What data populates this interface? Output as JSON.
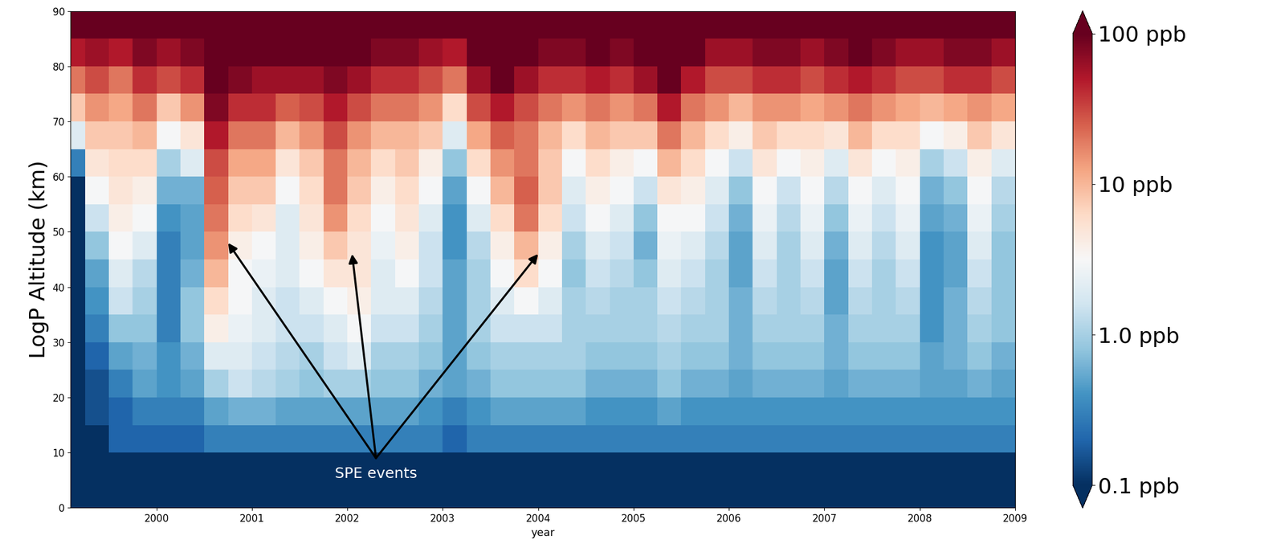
{
  "chart_data": {
    "type": "heatmap",
    "x_label": "year",
    "y_label": "LogP Altitude (km)",
    "xlim": [
      1999.1,
      2009.0
    ],
    "xticks": [
      2000,
      2001,
      2002,
      2003,
      2004,
      2005,
      2006,
      2007,
      2008,
      2009
    ],
    "ylim": [
      0,
      90
    ],
    "yticks": [
      0,
      10,
      20,
      30,
      40,
      50,
      60,
      70,
      80,
      90
    ],
    "x": [
      1999.125,
      1999.375,
      1999.625,
      1999.875,
      2000.125,
      2000.375,
      2000.625,
      2000.875,
      2001.125,
      2001.375,
      2001.625,
      2001.875,
      2002.125,
      2002.375,
      2002.625,
      2002.875,
      2003.125,
      2003.375,
      2003.625,
      2003.875,
      2004.125,
      2004.375,
      2004.625,
      2004.875,
      2005.125,
      2005.375,
      2005.625,
      2005.875,
      2006.125,
      2006.375,
      2006.625,
      2006.875,
      2007.125,
      2007.375,
      2007.625,
      2007.875,
      2008.125,
      2008.375,
      2008.625,
      2008.875
    ],
    "y": [
      2.5,
      7.5,
      12.5,
      17.5,
      22.5,
      27.5,
      32.5,
      37.5,
      42.5,
      47.5,
      52.5,
      57.5,
      62.5,
      67.5,
      72.5,
      77.5,
      82.5,
      87.5
    ],
    "cells": [
      [
        0.1,
        0.1,
        0.1,
        0.1,
        0.1,
        0.1,
        0.1,
        0.1,
        0.1,
        0.1,
        0.1,
        0.1,
        0.3,
        2,
        8,
        20,
        50,
        100
      ],
      [
        0.1,
        0.1,
        0.1,
        0.15,
        0.15,
        0.2,
        0.3,
        0.4,
        0.5,
        0.8,
        1.5,
        3,
        5,
        8,
        15,
        30,
        60,
        100
      ],
      [
        0.1,
        0.1,
        0.2,
        0.2,
        0.3,
        0.5,
        0.8,
        1.5,
        2,
        3,
        4,
        5,
        6,
        8,
        12,
        20,
        50,
        100
      ],
      [
        0.1,
        0.1,
        0.2,
        0.3,
        0.5,
        0.6,
        0.8,
        1,
        1.2,
        2,
        3,
        4,
        6,
        10,
        20,
        40,
        80,
        150
      ],
      [
        0.1,
        0.1,
        0.2,
        0.3,
        0.4,
        0.4,
        0.3,
        0.3,
        0.3,
        0.3,
        0.4,
        0.6,
        1,
        3,
        8,
        30,
        60,
        120
      ],
      [
        0.1,
        0.1,
        0.2,
        0.3,
        0.5,
        0.6,
        0.8,
        0.8,
        0.6,
        0.5,
        0.5,
        0.6,
        2,
        5,
        15,
        40,
        80,
        150
      ],
      [
        0.1,
        0.1,
        0.3,
        0.5,
        1,
        2,
        4,
        6,
        10,
        15,
        20,
        25,
        30,
        50,
        80,
        120,
        150,
        200
      ],
      [
        0.1,
        0.1,
        0.3,
        0.6,
        1.5,
        2,
        2.5,
        3,
        3,
        4,
        6,
        8,
        12,
        20,
        40,
        80,
        120,
        150
      ],
      [
        0.1,
        0.1,
        0.3,
        0.6,
        1.2,
        1.5,
        2,
        2,
        2.5,
        3,
        5,
        8,
        12,
        20,
        40,
        60,
        100,
        150
      ],
      [
        0.1,
        0.1,
        0.3,
        0.5,
        1,
        1.2,
        1.5,
        1.5,
        2,
        2,
        2,
        3,
        5,
        10,
        25,
        60,
        100,
        150
      ],
      [
        0.1,
        0.1,
        0.3,
        0.5,
        0.8,
        1,
        1.5,
        2,
        3,
        4,
        5,
        6,
        8,
        15,
        30,
        60,
        100,
        150
      ],
      [
        0.1,
        0.1,
        0.3,
        0.5,
        1,
        1.5,
        2,
        3,
        5,
        8,
        15,
        20,
        20,
        30,
        50,
        80,
        100,
        150
      ],
      [
        0.1,
        0.1,
        0.3,
        0.5,
        1,
        2,
        3,
        4,
        5,
        5,
        6,
        8,
        10,
        15,
        30,
        60,
        100,
        150
      ],
      [
        0.1,
        0.1,
        0.3,
        0.5,
        0.8,
        1,
        1.5,
        2,
        2,
        2.5,
        3,
        4,
        6,
        10,
        20,
        40,
        80,
        150
      ],
      [
        0.1,
        0.1,
        0.3,
        0.5,
        0.8,
        1,
        1.5,
        2,
        3,
        4,
        5,
        6,
        8,
        10,
        20,
        40,
        80,
        120
      ],
      [
        0.1,
        0.1,
        0.3,
        0.4,
        0.6,
        0.8,
        1,
        1.2,
        1.5,
        1.5,
        2,
        3,
        4,
        8,
        15,
        30,
        60,
        100
      ],
      [
        0.1,
        0.1,
        0.2,
        0.3,
        0.5,
        0.5,
        0.5,
        0.5,
        0.5,
        0.4,
        0.4,
        0.5,
        0.8,
        2,
        6,
        20,
        50,
        100
      ],
      [
        0.1,
        0.1,
        0.3,
        0.4,
        0.6,
        0.8,
        1,
        1,
        1,
        1.2,
        2,
        3,
        6,
        12,
        30,
        60,
        120,
        200
      ],
      [
        0.1,
        0.1,
        0.3,
        0.5,
        0.8,
        1,
        1.5,
        2,
        3,
        4,
        6,
        10,
        15,
        25,
        50,
        100,
        150,
        200
      ],
      [
        0.1,
        0.1,
        0.3,
        0.5,
        0.8,
        1,
        1.5,
        3,
        6,
        10,
        20,
        25,
        20,
        20,
        30,
        60,
        100,
        150
      ],
      [
        0.1,
        0.1,
        0.3,
        0.5,
        0.8,
        1,
        1.5,
        2,
        3,
        4,
        6,
        8,
        8,
        10,
        20,
        40,
        80,
        120
      ],
      [
        0.1,
        0.1,
        0.3,
        0.5,
        0.8,
        1,
        1,
        1,
        0.8,
        1,
        1.5,
        2,
        3,
        6,
        15,
        40,
        80,
        150
      ],
      [
        0.1,
        0.1,
        0.3,
        0.4,
        0.6,
        0.8,
        1,
        1.2,
        1.5,
        2,
        3,
        4,
        6,
        10,
        20,
        50,
        100,
        150
      ],
      [
        0.1,
        0.1,
        0.3,
        0.4,
        0.6,
        0.8,
        1,
        1,
        1.2,
        1.5,
        2,
        3,
        4,
        8,
        15,
        40,
        80,
        120
      ],
      [
        0.1,
        0.1,
        0.3,
        0.4,
        0.6,
        0.8,
        1,
        1,
        0.8,
        0.6,
        0.8,
        1.5,
        3,
        8,
        20,
        60,
        100,
        150
      ],
      [
        0.1,
        0.1,
        0.3,
        0.5,
        0.8,
        1,
        1.2,
        1.5,
        2,
        2.5,
        3,
        5,
        10,
        20,
        50,
        100,
        200,
        200
      ],
      [
        0.1,
        0.1,
        0.3,
        0.4,
        0.6,
        0.8,
        1,
        1.2,
        1.5,
        2,
        3,
        4,
        6,
        10,
        20,
        50,
        100,
        200
      ],
      [
        0.1,
        0.1,
        0.3,
        0.4,
        0.6,
        0.8,
        1,
        1,
        1,
        1.2,
        1.5,
        2,
        3,
        6,
        15,
        30,
        60,
        100
      ],
      [
        0.1,
        0.1,
        0.3,
        0.4,
        0.5,
        0.6,
        0.6,
        0.6,
        0.5,
        0.5,
        0.6,
        0.8,
        1.5,
        4,
        10,
        30,
        60,
        100
      ],
      [
        0.1,
        0.1,
        0.3,
        0.4,
        0.6,
        0.8,
        1,
        1.2,
        1.5,
        2,
        2.5,
        3,
        5,
        8,
        15,
        40,
        80,
        120
      ],
      [
        0.1,
        0.1,
        0.3,
        0.4,
        0.6,
        0.8,
        1,
        1,
        1,
        1,
        1.2,
        1.5,
        3,
        6,
        15,
        40,
        80,
        150
      ],
      [
        0.1,
        0.1,
        0.3,
        0.4,
        0.6,
        0.8,
        1,
        1.2,
        1.5,
        2,
        2.5,
        3,
        4,
        6,
        12,
        30,
        60,
        100
      ],
      [
        0.1,
        0.1,
        0.3,
        0.4,
        0.5,
        0.6,
        0.6,
        0.5,
        0.5,
        0.6,
        0.8,
        1.2,
        2,
        5,
        15,
        40,
        80,
        150
      ],
      [
        0.1,
        0.1,
        0.3,
        0.4,
        0.6,
        0.8,
        1,
        1.2,
        1.5,
        2,
        2.5,
        3,
        5,
        10,
        20,
        50,
        100,
        150
      ],
      [
        0.1,
        0.1,
        0.3,
        0.4,
        0.6,
        0.8,
        1,
        1,
        1,
        1.2,
        1.5,
        2,
        3,
        6,
        15,
        40,
        80,
        150
      ],
      [
        0.1,
        0.1,
        0.3,
        0.4,
        0.6,
        0.8,
        1,
        1.2,
        1.5,
        2,
        2.5,
        3,
        4,
        6,
        12,
        30,
        60,
        120
      ],
      [
        0.1,
        0.1,
        0.3,
        0.4,
        0.5,
        0.5,
        0.4,
        0.4,
        0.4,
        0.4,
        0.5,
        0.6,
        1,
        3,
        10,
        30,
        60,
        120
      ],
      [
        0.1,
        0.1,
        0.3,
        0.4,
        0.5,
        0.6,
        0.6,
        0.6,
        0.5,
        0.5,
        0.6,
        0.8,
        1.5,
        4,
        12,
        40,
        80,
        150
      ],
      [
        0.1,
        0.1,
        0.3,
        0.4,
        0.6,
        0.8,
        1,
        1.2,
        1.5,
        2,
        2.5,
        3,
        4,
        8,
        15,
        40,
        80,
        150
      ],
      [
        0.1,
        0.1,
        0.3,
        0.4,
        0.5,
        0.6,
        0.8,
        0.8,
        0.8,
        0.8,
        1,
        1.2,
        2,
        5,
        12,
        30,
        60,
        100
      ]
    ],
    "log": true,
    "colorbar_range": [
      0.1,
      100
    ],
    "colorbar_ticks": [
      {
        "value": 0.1,
        "label": "0.1 ppb"
      },
      {
        "value": 1,
        "label": "1.0 ppb"
      },
      {
        "value": 10,
        "label": "10 ppb"
      },
      {
        "value": 100,
        "label": "100 ppb"
      }
    ],
    "annotation": {
      "text": "SPE events",
      "anchor": [
        2002.3,
        9
      ],
      "points": [
        [
          2000.75,
          48
        ],
        [
          2002.05,
          46
        ],
        [
          2004.0,
          46
        ]
      ]
    }
  }
}
